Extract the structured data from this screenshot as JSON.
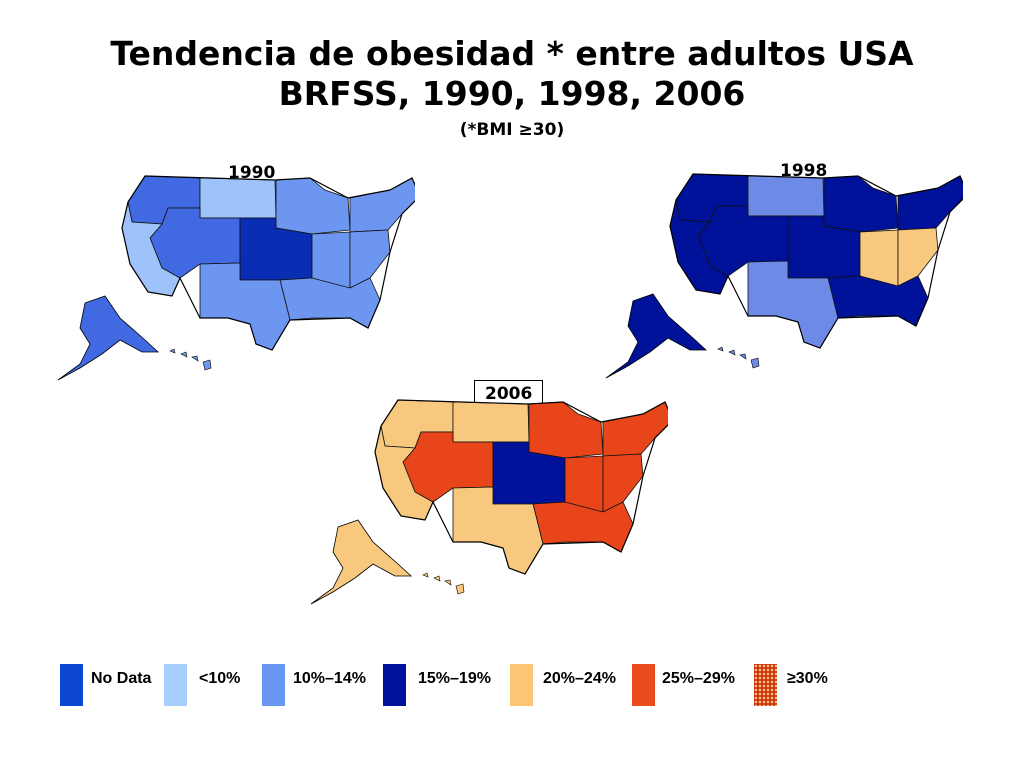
{
  "title_line1": "Tendencia de obesidad * entre adultos USA",
  "title_line2": "BRFSS, 1990, 1998, 2006",
  "subtitle": "(*BMI ≥30)",
  "maps": [
    {
      "year": "1990",
      "colors": [
        "#4169e1",
        "#9dc3fa",
        "#6d96f0",
        "#6d96f0",
        "#4169e1",
        "#0a2eb3",
        "#6d96f0",
        "#9dc3fa",
        "#6d96f0",
        "#6d96f0",
        "#6d96f0"
      ]
    },
    {
      "year": "1998",
      "colors": [
        "#00129a",
        "#6d8ae6",
        "#00129a",
        "#00129a",
        "#00129a",
        "#00129a",
        "#f8c87f",
        "#00129a",
        "#f8c87f",
        "#00129a",
        "#6d8ae6"
      ]
    },
    {
      "year": "2006",
      "colors": [
        "#f8c87f",
        "#f8c87f",
        "#e8461a",
        "#e8461a",
        "#e8461a",
        "#00129a",
        "#e8461a",
        "#f8c87f",
        "#e8461a",
        "#e8461a",
        "#f8c87f"
      ]
    }
  ],
  "legend": [
    {
      "label": "No Data",
      "color": "#0b47d1"
    },
    {
      "label": "<10%",
      "color": "#a8cffb"
    },
    {
      "label": "10%–14%",
      "color": "#6a97f2"
    },
    {
      "label": "15%–19%",
      "color": "#00129a"
    },
    {
      "label": "20%–24%",
      "color": "#fbc574"
    },
    {
      "label": "25%–29%",
      "color": "#ea4a1c"
    },
    {
      "label": "≥30%",
      "color": "#c4320a",
      "pattern": "dots"
    }
  ]
}
